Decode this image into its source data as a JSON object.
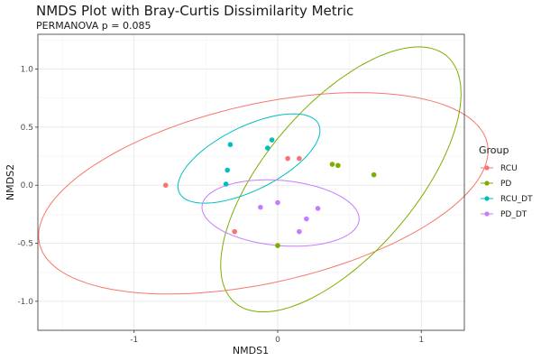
{
  "chart_data": {
    "type": "scatter",
    "title": "NMDS Plot with Bray-Curtis Dissimilarity Metric",
    "subtitle": "PERMANOVA p = 0.085",
    "xlabel": "NMDS1",
    "ylabel": "NMDS2",
    "xlim": [
      -1.67,
      1.3
    ],
    "ylim": [
      -1.25,
      1.3
    ],
    "x_ticks": [
      -1,
      0,
      1
    ],
    "x_tick_labels": [
      "-1",
      "0",
      "1"
    ],
    "y_ticks": [
      -1.0,
      -0.5,
      0.0,
      0.5,
      1.0
    ],
    "y_tick_labels": [
      "-1.0",
      "-0.5",
      "0.0",
      "0.5",
      "1.0"
    ],
    "grid": true,
    "legend": {
      "title": "Group",
      "position": "right",
      "entries": [
        "RCU",
        "PD",
        "RCU_DT",
        "PD_DT"
      ]
    },
    "series": [
      {
        "name": "RCU",
        "color": "#F8766D",
        "points": [
          [
            -0.78,
            0.0
          ],
          [
            0.07,
            0.23
          ],
          [
            0.15,
            0.23
          ],
          [
            -0.3,
            -0.4
          ]
        ],
        "ellipse": {
          "center": [
            -0.1,
            -0.07
          ],
          "semi_axes": [
            1.62,
            0.76
          ],
          "angle_deg": 17
        }
      },
      {
        "name": "PD",
        "color": "#7CAE00",
        "points": [
          [
            0.38,
            0.18
          ],
          [
            0.42,
            0.17
          ],
          [
            0.67,
            0.09
          ],
          [
            0.0,
            -0.52
          ]
        ],
        "ellipse": {
          "center": [
            0.44,
            0.05
          ],
          "semi_axes": [
            1.3,
            0.56
          ],
          "angle_deg": 58
        }
      },
      {
        "name": "RCU_DT",
        "color": "#00BFC4",
        "points": [
          [
            -0.04,
            0.39
          ],
          [
            -0.33,
            0.35
          ],
          [
            -0.07,
            0.32
          ],
          [
            -0.35,
            0.13
          ],
          [
            -0.36,
            0.01
          ]
        ],
        "ellipse": {
          "center": [
            -0.2,
            0.23
          ],
          "semi_axes": [
            0.57,
            0.26
          ],
          "angle_deg": 34
        }
      },
      {
        "name": "PD_DT",
        "color": "#C77CFF",
        "points": [
          [
            -0.12,
            -0.19
          ],
          [
            0.0,
            -0.15
          ],
          [
            0.28,
            -0.2
          ],
          [
            0.2,
            -0.29
          ],
          [
            0.15,
            -0.4
          ]
        ],
        "ellipse": {
          "center": [
            0.02,
            -0.24
          ],
          "semi_axes": [
            0.55,
            0.28
          ],
          "angle_deg": -7
        }
      }
    ]
  }
}
